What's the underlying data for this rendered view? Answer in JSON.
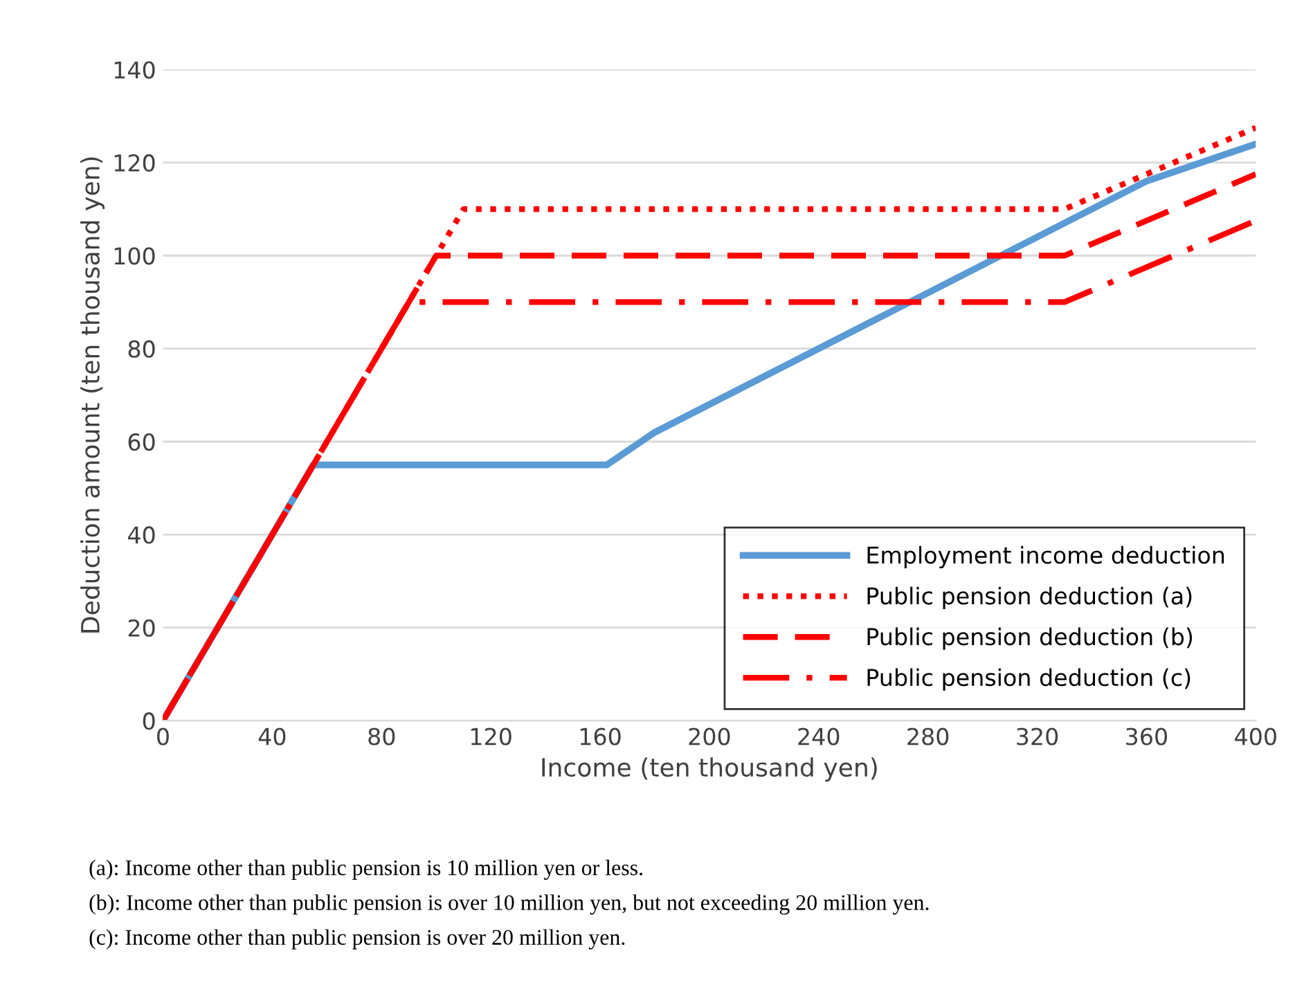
{
  "chart_data": {
    "type": "line",
    "xlabel": "Income (ten thousand yen)",
    "ylabel": "Deduction amount (ten thousand yen)",
    "xlim": [
      0,
      400
    ],
    "xticks": [
      0,
      40,
      80,
      120,
      160,
      200,
      240,
      280,
      320,
      360,
      400
    ],
    "ylim": [
      0,
      140
    ],
    "yticks": [
      0,
      20,
      40,
      60,
      80,
      100,
      120,
      140
    ],
    "grid": "y",
    "legend": "bottom right",
    "marker": "none",
    "series": [
      {
        "name": "Employment income deduction",
        "color": "#5b9bd5",
        "line_style": "solid",
        "x": [
          0,
          55,
          162.5,
          180,
          360,
          400
        ],
        "values": [
          0,
          55,
          55,
          62,
          116,
          124
        ]
      },
      {
        "name": "Public pension deduction (a)",
        "color": "#ff0000",
        "line_style": "dotted",
        "x": [
          0,
          110,
          330,
          400
        ],
        "values": [
          0,
          110,
          110,
          127.5
        ]
      },
      {
        "name": "Public pension deduction (b)",
        "color": "#ff0000",
        "line_style": "dashed",
        "x": [
          0,
          100,
          330,
          400
        ],
        "values": [
          0,
          100,
          100,
          117.5
        ]
      },
      {
        "name": "Public pension deduction (c)",
        "color": "#ff0000",
        "line_style": "dashdot",
        "x": [
          0,
          90,
          330,
          400
        ],
        "values": [
          0,
          90,
          90,
          107.5
        ]
      }
    ],
    "annotations": [
      "(a): Income other than public pension is 10 million yen or less.",
      "(b): Income other than public pension is over 10 million yen, but not exceeding 20 million yen.",
      "(c): Income other than public pension is over 20 million yen."
    ]
  }
}
